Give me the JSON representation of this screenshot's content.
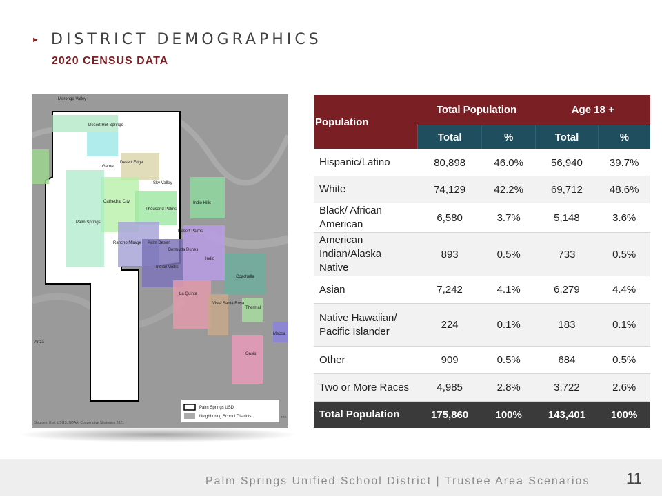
{
  "header": {
    "title": "DISTRICT DEMOGRAPHICS",
    "subtitle": "2020 CENSUS DATA"
  },
  "map": {
    "places": [
      "Morongo Valley",
      "Desert Hot Springs",
      "Desert Edge",
      "Garnet",
      "Sky Valley",
      "Cathedral City",
      "Thousand Palms",
      "Indio Hills",
      "Palm Springs",
      "Desert Palms",
      "Rancho Mirage",
      "Palm Desert",
      "Bermuda Dunes",
      "Indio",
      "Indian Wells",
      "Coachella",
      "La Quinta",
      "Vista Santa Rosa",
      "Thermal",
      "Mecca",
      "Anza",
      "Oasis"
    ],
    "legend": [
      "Palm Springs USD",
      "Neighboring School Districts"
    ],
    "attribution": "Sources: Esri, USGS, NOAA, Cooperative Strategies 2021",
    "cut_text": "res"
  },
  "table": {
    "headers": {
      "population": "Population",
      "total_population": "Total Population",
      "age18": "Age 18 +",
      "sub": [
        "Total",
        "%",
        "Total",
        "%"
      ]
    },
    "rows": [
      {
        "label": "Hispanic/Latino",
        "vals": [
          "80,898",
          "46.0%",
          "56,940",
          "39.7%"
        ]
      },
      {
        "label": "White",
        "vals": [
          "74,129",
          "42.2%",
          "69,712",
          "48.6%"
        ]
      },
      {
        "label": "Black/ African American",
        "vals": [
          "6,580",
          "3.7%",
          "5,148",
          "3.6%"
        ]
      },
      {
        "label": "American Indian/Alaska Native",
        "vals": [
          "893",
          "0.5%",
          "733",
          "0.5%"
        ]
      },
      {
        "label": "Asian",
        "vals": [
          "7,242",
          "4.1%",
          "6,279",
          "4.4%"
        ]
      },
      {
        "label": "Native Hawaiian/ Pacific Islander",
        "vals": [
          "224",
          "0.1%",
          "183",
          "0.1%"
        ]
      },
      {
        "label": "Other",
        "vals": [
          "909",
          "0.5%",
          "684",
          "0.5%"
        ]
      },
      {
        "label": "Two or More Races",
        "vals": [
          "4,985",
          "2.8%",
          "3,722",
          "2.6%"
        ]
      }
    ],
    "total": {
      "label": "Total Population",
      "vals": [
        "175,860",
        "100%",
        "143,401",
        "100%"
      ]
    }
  },
  "footer": {
    "text": "Palm Springs Unified School District | Trustee Area Scenarios",
    "page_number": "11"
  },
  "colors": {
    "accent": "#7a1f23",
    "header2": "#1f4e5f",
    "total_row": "#3a3a3a"
  }
}
